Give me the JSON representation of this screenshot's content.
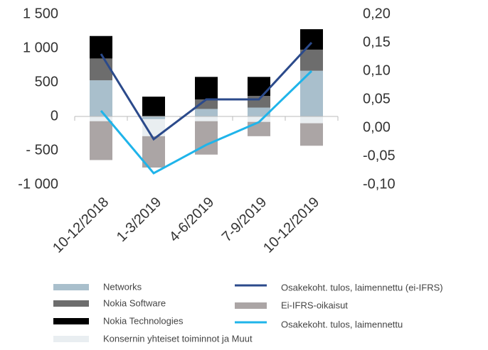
{
  "chart_data": {
    "type": "bar",
    "categories": [
      "10-12/2018",
      "1-3/2019",
      "4-6/2019",
      "7-9/2019",
      "10-12/2019"
    ],
    "series": [
      {
        "name": "Networks",
        "color": "#a9bfcc",
        "values": [
          530,
          -40,
          110,
          130,
          670
        ]
      },
      {
        "name": "Nokia Software",
        "color": "#6d6d6d",
        "values": [
          320,
          0,
          140,
          170,
          310
        ]
      },
      {
        "name": "Nokia Technologies",
        "color": "#000000",
        "values": [
          330,
          290,
          330,
          280,
          300
        ]
      },
      {
        "name": "Konsernin yhteiset toiminnot ja Muut",
        "color": "#e9eef1",
        "values": [
          -70,
          -250,
          -70,
          -80,
          -100
        ]
      },
      {
        "name": "Ei-IFRS-oikaisut",
        "color": "#aba5a5",
        "values": [
          -570,
          -460,
          -490,
          -210,
          -330
        ]
      },
      {
        "name": "Osakekoht. tulos, laimennettu (ei-IFRS)",
        "color": "#2b4a8b",
        "axis": "y2",
        "values": [
          0.13,
          -0.02,
          0.05,
          0.05,
          0.15
        ]
      },
      {
        "name": "Osakekoht. tulos, laimennettu",
        "color": "#1fb4ea",
        "axis": "y2",
        "values": [
          0.03,
          -0.08,
          -0.03,
          0.01,
          0.1
        ]
      }
    ],
    "ylim": [
      -1000,
      1500
    ],
    "yticks": [
      {
        "value": -1000,
        "label": "-1 000"
      },
      {
        "value": -500,
        "label": "- 500"
      },
      0,
      {
        "value": 500,
        "label": "500"
      },
      {
        "value": 1000,
        "label": "1 000"
      },
      {
        "value": 1500,
        "label": "1 500"
      }
    ],
    "y2lim": [
      -0.1,
      0.2
    ],
    "y2ticks": [
      {
        "value": -0.1,
        "label": "-0,10"
      },
      {
        "value": -0.05,
        "label": "-0,05"
      },
      {
        "value": 0,
        "label": "0,00"
      },
      {
        "value": 0.05,
        "label": "0,05"
      },
      {
        "value": 0.1,
        "label": "0,10"
      },
      {
        "value": 0.15,
        "label": "0,15"
      },
      {
        "value": 0.2,
        "label": "0,20"
      }
    ],
    "stacked": true
  }
}
